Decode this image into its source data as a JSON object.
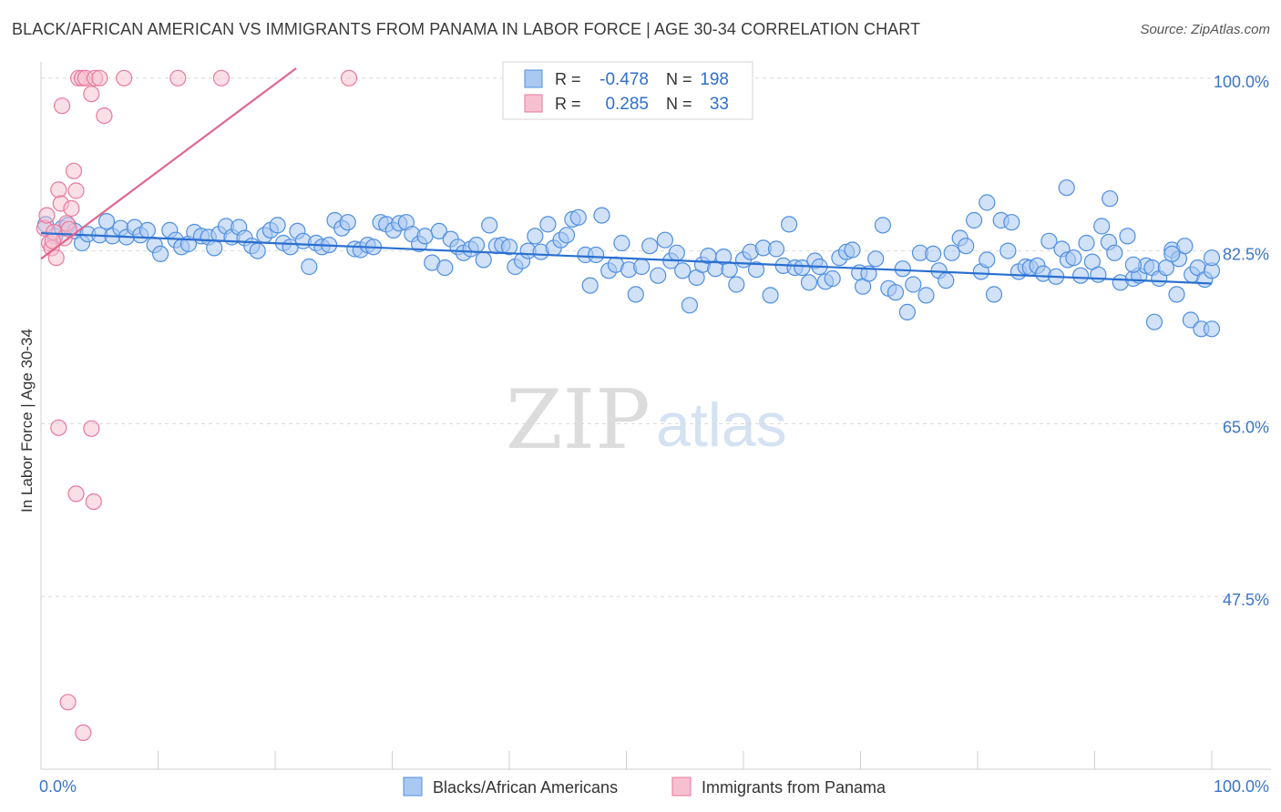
{
  "header": {
    "title": "BLACK/AFRICAN AMERICAN VS IMMIGRANTS FROM PANAMA IN LABOR FORCE | AGE 30-34 CORRELATION CHART",
    "source": "Source: ZipAtlas.com"
  },
  "watermark": {
    "zip": "ZIP",
    "atlas": "atlas"
  },
  "colors": {
    "blue": "#4f8fe0",
    "blue_fill": "#a9c9f2",
    "pink": "#e8799c",
    "pink_fill": "#f7c0d0",
    "blue_line": "#2a6fd0",
    "pink_line": "#e0678f",
    "tick_label": "#3b74c9"
  },
  "legend_box": {
    "rows": [
      {
        "r_label": "R = ",
        "r_value": "-0.478",
        "n_label": "N = ",
        "n_value": "198"
      },
      {
        "r_label": "R = ",
        "r_value": "0.285",
        "n_label": "N = ",
        "n_value": "33"
      }
    ]
  },
  "chart_data": {
    "type": "scatter",
    "title": "BLACK/AFRICAN AMERICAN VS IMMIGRANTS FROM PANAMA IN LABOR FORCE | AGE 30-34 CORRELATION CHART",
    "xlabel": "",
    "ylabel": "In Labor Force | Age 30-34",
    "xlim": [
      0,
      100
    ],
    "ylim": [
      30,
      101
    ],
    "x_tick_labels": [
      "0.0%",
      "100.0%"
    ],
    "y_ticks": [
      47.5,
      65.0,
      82.5,
      100.0
    ],
    "y_tick_labels": [
      "47.5%",
      "65.0%",
      "82.5%",
      "100.0%"
    ],
    "grid": true,
    "legend_position": "bottom",
    "series": [
      {
        "name": "Blacks/African Americans",
        "color": "#4f8fe0",
        "r": -0.478,
        "n": 198,
        "trend": [
          [
            0,
            84.3
          ],
          [
            100,
            79.2
          ]
        ],
        "points": [
          [
            0.4,
            85.2
          ],
          [
            1.2,
            84.0
          ],
          [
            1.8,
            84.8
          ],
          [
            2.3,
            85.1
          ],
          [
            2.9,
            84.5
          ],
          [
            3.5,
            83.3
          ],
          [
            4.0,
            84.2
          ],
          [
            5.0,
            84.1
          ],
          [
            5.6,
            85.5
          ],
          [
            6.1,
            84.0
          ],
          [
            6.8,
            84.8
          ],
          [
            7.3,
            83.9
          ],
          [
            8.0,
            84.9
          ],
          [
            8.5,
            84.1
          ],
          [
            9.1,
            84.6
          ],
          [
            9.7,
            83.1
          ],
          [
            10.2,
            82.2
          ],
          [
            11.0,
            84.6
          ],
          [
            11.5,
            83.6
          ],
          [
            12.0,
            82.9
          ],
          [
            12.6,
            83.2
          ],
          [
            13.1,
            84.4
          ],
          [
            13.7,
            84.0
          ],
          [
            14.3,
            83.9
          ],
          [
            14.8,
            82.8
          ],
          [
            15.2,
            84.2
          ],
          [
            15.8,
            85.0
          ],
          [
            16.3,
            83.9
          ],
          [
            16.9,
            84.9
          ],
          [
            17.4,
            83.8
          ],
          [
            18.0,
            83.0
          ],
          [
            18.5,
            82.5
          ],
          [
            19.1,
            84.1
          ],
          [
            19.6,
            84.6
          ],
          [
            20.2,
            85.1
          ],
          [
            20.7,
            83.3
          ],
          [
            21.3,
            82.9
          ],
          [
            21.9,
            84.5
          ],
          [
            22.4,
            83.5
          ],
          [
            22.9,
            80.9
          ],
          [
            23.5,
            83.3
          ],
          [
            24.0,
            82.9
          ],
          [
            24.6,
            83.1
          ],
          [
            25.1,
            85.6
          ],
          [
            25.7,
            84.8
          ],
          [
            26.2,
            85.4
          ],
          [
            26.8,
            82.7
          ],
          [
            27.3,
            82.6
          ],
          [
            27.9,
            83.1
          ],
          [
            28.4,
            82.9
          ],
          [
            29.0,
            85.4
          ],
          [
            29.5,
            85.2
          ],
          [
            30.1,
            84.6
          ],
          [
            30.6,
            85.3
          ],
          [
            31.2,
            85.4
          ],
          [
            31.7,
            84.2
          ],
          [
            32.3,
            83.2
          ],
          [
            32.8,
            84.0
          ],
          [
            33.4,
            81.3
          ],
          [
            34.0,
            84.5
          ],
          [
            34.5,
            80.8
          ],
          [
            35.0,
            83.7
          ],
          [
            35.6,
            82.9
          ],
          [
            36.1,
            82.3
          ],
          [
            36.7,
            82.7
          ],
          [
            37.2,
            83.1
          ],
          [
            37.8,
            81.6
          ],
          [
            38.3,
            85.1
          ],
          [
            38.9,
            83.0
          ],
          [
            39.4,
            83.1
          ],
          [
            40.0,
            82.9
          ],
          [
            40.5,
            80.9
          ],
          [
            41.1,
            81.5
          ],
          [
            41.6,
            82.5
          ],
          [
            42.2,
            84.0
          ],
          [
            42.7,
            82.4
          ],
          [
            43.3,
            85.2
          ],
          [
            43.8,
            82.8
          ],
          [
            44.4,
            83.6
          ],
          [
            44.9,
            84.1
          ],
          [
            45.4,
            85.7
          ],
          [
            45.9,
            85.9
          ],
          [
            46.5,
            82.1
          ],
          [
            46.9,
            79.0
          ],
          [
            47.4,
            82.1
          ],
          [
            47.9,
            86.1
          ],
          [
            48.5,
            80.5
          ],
          [
            49.1,
            81.1
          ],
          [
            49.6,
            83.3
          ],
          [
            50.2,
            80.6
          ],
          [
            50.8,
            78.1
          ],
          [
            51.3,
            80.9
          ],
          [
            52.0,
            83.0
          ],
          [
            52.7,
            80.0
          ],
          [
            53.3,
            83.6
          ],
          [
            53.8,
            81.5
          ],
          [
            54.3,
            82.3
          ],
          [
            54.8,
            80.5
          ],
          [
            55.4,
            77.0
          ],
          [
            56.0,
            79.8
          ],
          [
            56.5,
            81.1
          ],
          [
            57.0,
            82.0
          ],
          [
            57.6,
            80.7
          ],
          [
            58.3,
            81.9
          ],
          [
            58.8,
            80.6
          ],
          [
            59.4,
            79.1
          ],
          [
            60.0,
            81.6
          ],
          [
            60.6,
            82.4
          ],
          [
            61.1,
            80.6
          ],
          [
            61.7,
            82.8
          ],
          [
            62.3,
            78.0
          ],
          [
            62.8,
            82.7
          ],
          [
            63.4,
            81.0
          ],
          [
            63.9,
            85.2
          ],
          [
            64.4,
            80.8
          ],
          [
            65.0,
            80.8
          ],
          [
            65.6,
            79.3
          ],
          [
            66.1,
            81.5
          ],
          [
            66.5,
            80.9
          ],
          [
            67.0,
            79.4
          ],
          [
            67.6,
            79.7
          ],
          [
            68.2,
            81.8
          ],
          [
            68.8,
            82.4
          ],
          [
            69.3,
            82.6
          ],
          [
            69.9,
            80.3
          ],
          [
            70.2,
            78.9
          ],
          [
            70.7,
            80.2
          ],
          [
            71.3,
            81.7
          ],
          [
            71.9,
            85.1
          ],
          [
            72.4,
            78.7
          ],
          [
            73.0,
            78.3
          ],
          [
            73.6,
            80.7
          ],
          [
            74.0,
            76.3
          ],
          [
            74.5,
            79.1
          ],
          [
            75.1,
            82.3
          ],
          [
            75.6,
            78.0
          ],
          [
            76.2,
            82.2
          ],
          [
            76.7,
            80.5
          ],
          [
            77.3,
            79.5
          ],
          [
            77.8,
            82.3
          ],
          [
            78.5,
            83.8
          ],
          [
            79.0,
            83.0
          ],
          [
            79.7,
            85.6
          ],
          [
            80.3,
            80.4
          ],
          [
            80.8,
            81.6
          ],
          [
            81.4,
            78.1
          ],
          [
            82.0,
            85.6
          ],
          [
            82.6,
            82.5
          ],
          [
            82.9,
            85.4
          ],
          [
            83.5,
            80.4
          ],
          [
            84.1,
            80.9
          ],
          [
            84.5,
            80.8
          ],
          [
            85.1,
            81.0
          ],
          [
            85.6,
            80.2
          ],
          [
            86.1,
            83.5
          ],
          [
            86.7,
            79.9
          ],
          [
            87.2,
            82.7
          ],
          [
            87.7,
            81.6
          ],
          [
            88.2,
            81.8
          ],
          [
            88.8,
            80.0
          ],
          [
            89.3,
            83.3
          ],
          [
            89.8,
            81.4
          ],
          [
            90.3,
            80.1
          ],
          [
            90.6,
            85.0
          ],
          [
            91.2,
            83.4
          ],
          [
            91.7,
            82.3
          ],
          [
            92.2,
            79.3
          ],
          [
            92.8,
            84.0
          ],
          [
            93.3,
            79.7
          ],
          [
            93.8,
            80.0
          ],
          [
            94.4,
            81.0
          ],
          [
            94.9,
            80.8
          ],
          [
            95.5,
            79.7
          ],
          [
            96.1,
            80.8
          ],
          [
            96.6,
            82.6
          ],
          [
            97.2,
            81.7
          ],
          [
            97.7,
            83.0
          ],
          [
            98.3,
            80.1
          ],
          [
            98.8,
            80.8
          ],
          [
            99.4,
            79.6
          ],
          [
            100.0,
            80.5
          ],
          [
            80.8,
            87.4
          ],
          [
            87.6,
            88.9
          ],
          [
            91.3,
            87.8
          ],
          [
            93.3,
            81.1
          ],
          [
            95.1,
            75.3
          ],
          [
            96.6,
            82.2
          ],
          [
            97.0,
            78.1
          ],
          [
            98.2,
            75.5
          ],
          [
            99.1,
            74.6
          ],
          [
            100.0,
            74.6
          ],
          [
            100.0,
            81.8
          ]
        ]
      },
      {
        "name": "Immigrants from Panama",
        "color": "#e8799c",
        "r": 0.285,
        "n": 33,
        "trend": [
          [
            0,
            81.7
          ],
          [
            21.8,
            101.0
          ]
        ],
        "points": [
          [
            0.3,
            84.8
          ],
          [
            0.5,
            86.1
          ],
          [
            0.7,
            83.3
          ],
          [
            0.9,
            82.8
          ],
          [
            1.1,
            84.4
          ],
          [
            1.3,
            81.8
          ],
          [
            1.5,
            88.7
          ],
          [
            1.7,
            87.3
          ],
          [
            2.0,
            83.8
          ],
          [
            2.2,
            85.3
          ],
          [
            2.4,
            84.7
          ],
          [
            2.6,
            86.8
          ],
          [
            2.8,
            90.6
          ],
          [
            3.0,
            88.6
          ],
          [
            1.8,
            97.2
          ],
          [
            3.2,
            100.0
          ],
          [
            3.5,
            100.0
          ],
          [
            3.8,
            100.0
          ],
          [
            4.3,
            98.4
          ],
          [
            4.6,
            100.0
          ],
          [
            5.0,
            100.0
          ],
          [
            5.4,
            96.2
          ],
          [
            7.1,
            100.0
          ],
          [
            11.7,
            100.0
          ],
          [
            15.4,
            100.0
          ],
          [
            26.3,
            100.0
          ],
          [
            1.5,
            64.6
          ],
          [
            4.3,
            64.5
          ],
          [
            3.0,
            57.9
          ],
          [
            4.5,
            57.1
          ],
          [
            2.3,
            36.8
          ],
          [
            3.6,
            33.7
          ],
          [
            1.0,
            83.5
          ]
        ]
      }
    ]
  }
}
